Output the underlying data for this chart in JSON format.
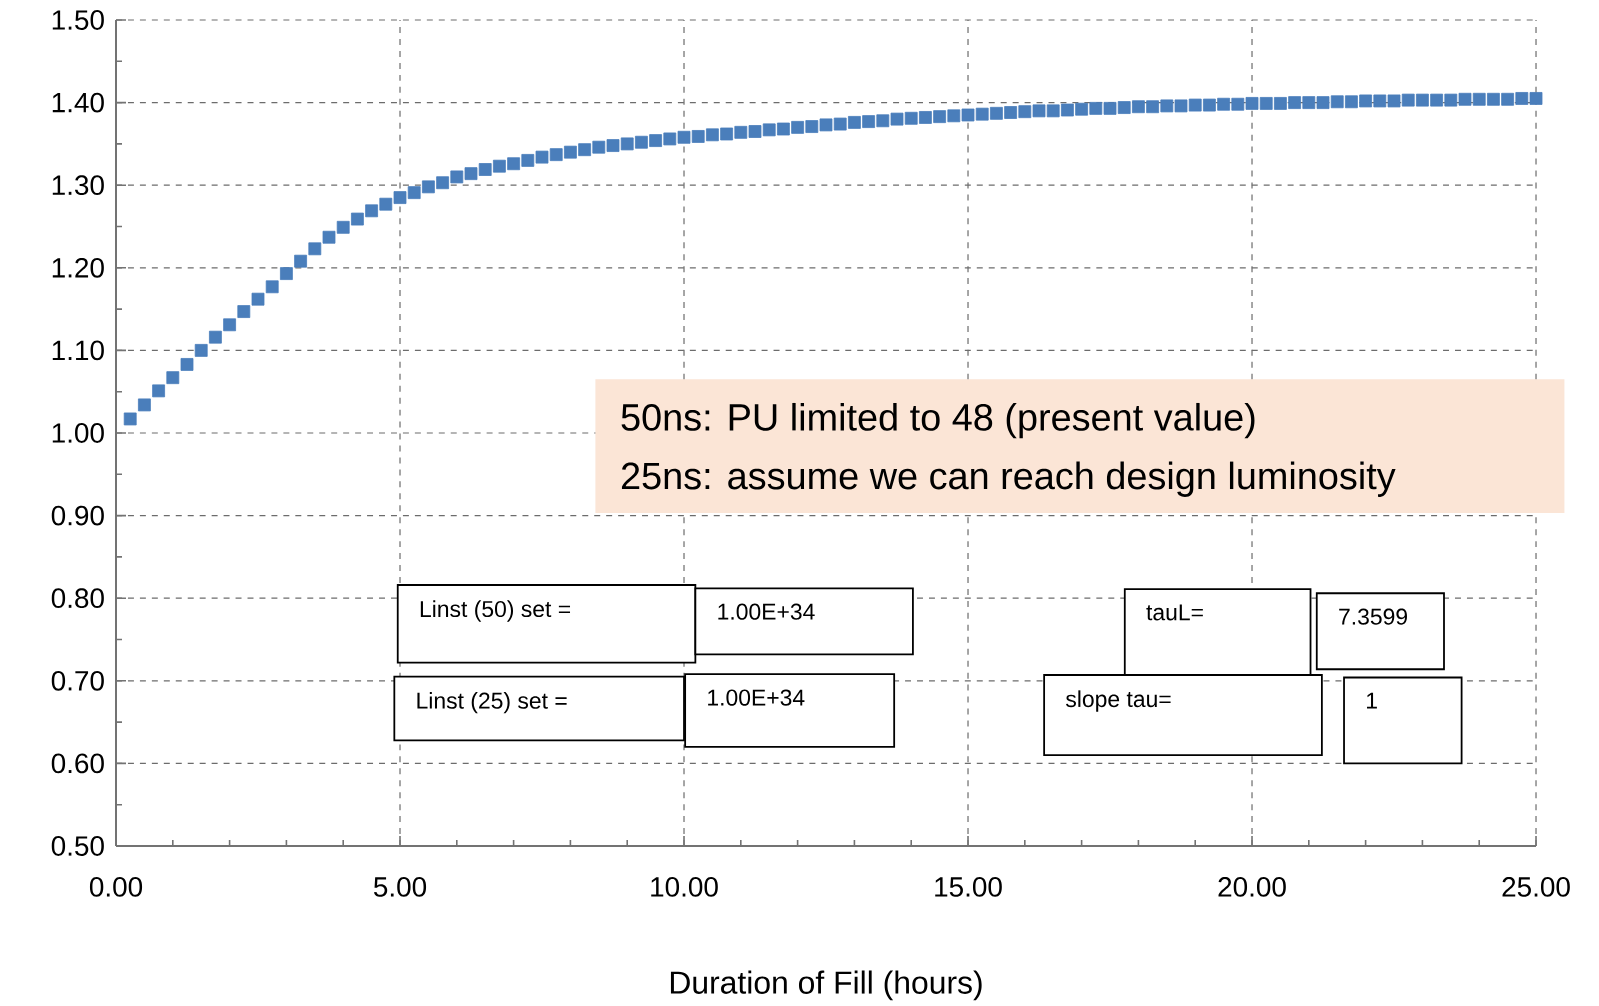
{
  "chart_data": {
    "type": "scatter",
    "xlabel": "Duration of Fill (hours)",
    "x": [
      0.25,
      0.5,
      0.75,
      1.0,
      1.25,
      1.5,
      1.75,
      2.0,
      2.25,
      2.5,
      2.75,
      3.0,
      3.25,
      3.5,
      3.75,
      4.0,
      4.25,
      4.5,
      4.75,
      5.0,
      5.25,
      5.5,
      5.75,
      6.0,
      6.25,
      6.5,
      6.75,
      7.0,
      7.25,
      7.5,
      7.75,
      8.0,
      8.25,
      8.5,
      8.75,
      9.0,
      9.25,
      9.5,
      9.75,
      10.0,
      10.25,
      10.5,
      10.75,
      11.0,
      11.25,
      11.5,
      11.75,
      12.0,
      12.25,
      12.5,
      12.75,
      13.0,
      13.25,
      13.5,
      13.75,
      14.0,
      14.25,
      14.5,
      14.75,
      15.0,
      15.25,
      15.5,
      15.75,
      16.0,
      16.25,
      16.5,
      16.75,
      17.0,
      17.25,
      17.5,
      17.75,
      18.0,
      18.25,
      18.5,
      18.75,
      19.0,
      19.25,
      19.5,
      19.75,
      20.0,
      20.25,
      20.5,
      20.75,
      21.0,
      21.25,
      21.5,
      21.75,
      22.0,
      22.25,
      22.5,
      22.75,
      23.0,
      23.25,
      23.5,
      23.75,
      24.0,
      24.25,
      24.5,
      24.75,
      25.0
    ],
    "series": [
      {
        "color": "#4a7ebb",
        "values": [
          1.017,
          1.034,
          1.051,
          1.067,
          1.083,
          1.1,
          1.116,
          1.131,
          1.147,
          1.162,
          1.177,
          1.193,
          1.208,
          1.223,
          1.237,
          1.249,
          1.259,
          1.269,
          1.277,
          1.285,
          1.291,
          1.298,
          1.303,
          1.31,
          1.314,
          1.319,
          1.323,
          1.326,
          1.33,
          1.334,
          1.337,
          1.34,
          1.343,
          1.346,
          1.348,
          1.35,
          1.352,
          1.354,
          1.356,
          1.358,
          1.359,
          1.361,
          1.362,
          1.364,
          1.365,
          1.367,
          1.368,
          1.37,
          1.371,
          1.373,
          1.374,
          1.376,
          1.377,
          1.378,
          1.38,
          1.381,
          1.382,
          1.383,
          1.384,
          1.385,
          1.386,
          1.387,
          1.388,
          1.389,
          1.39,
          1.39,
          1.391,
          1.392,
          1.393,
          1.393,
          1.394,
          1.395,
          1.395,
          1.396,
          1.396,
          1.397,
          1.397,
          1.398,
          1.398,
          1.399,
          1.399,
          1.399,
          1.4,
          1.4,
          1.4,
          1.401,
          1.401,
          1.402,
          1.402,
          1.402,
          1.403,
          1.403,
          1.403,
          1.403,
          1.404,
          1.404,
          1.404,
          1.404,
          1.405,
          1.405
        ]
      }
    ],
    "xlim": [
      0,
      25
    ],
    "ylim": [
      0.5,
      1.5
    ],
    "xticks": [
      {
        "value": 0,
        "label": "0.00"
      },
      {
        "value": 5,
        "label": "5.00"
      },
      {
        "value": 10,
        "label": "10.00"
      },
      {
        "value": 15,
        "label": "15.00"
      },
      {
        "value": 20,
        "label": "20.00"
      },
      {
        "value": 25,
        "label": "25.00"
      }
    ],
    "yticks": [
      {
        "value": 0.5,
        "label": "0.50"
      },
      {
        "value": 0.6,
        "label": "0.60"
      },
      {
        "value": 0.7,
        "label": "0.70"
      },
      {
        "value": 0.8,
        "label": "0.80"
      },
      {
        "value": 0.9,
        "label": "0.90"
      },
      {
        "value": 1.0,
        "label": "1.00"
      },
      {
        "value": 1.1,
        "label": "1.10"
      },
      {
        "value": 1.2,
        "label": "1.20"
      },
      {
        "value": 1.3,
        "label": "1.30"
      },
      {
        "value": 1.4,
        "label": "1.40"
      },
      {
        "value": 1.5,
        "label": "1.50"
      }
    ],
    "grid": true,
    "marker": "square",
    "annotations": [
      "50ns: PU limited to 48 (present value)",
      "25ns: assume we can reach design luminosity",
      "Linst (50) set =",
      "1.00E+34",
      "Linst (25) set =",
      "1.00E+34",
      "tauL=",
      "7.3599",
      "slope tau=",
      "1"
    ]
  }
}
